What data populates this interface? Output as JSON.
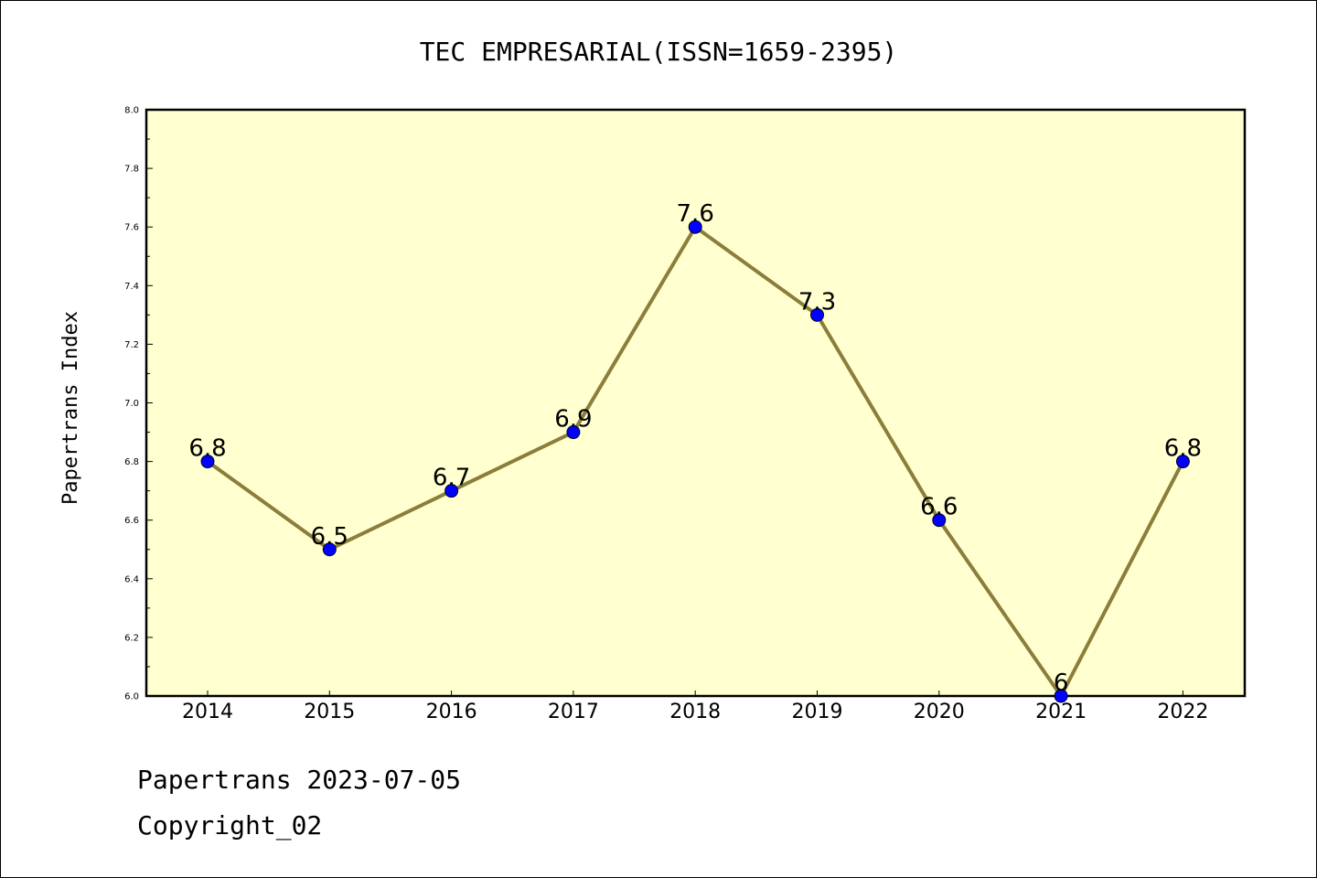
{
  "footer": {
    "line1": "Papertrans 2023-07-05",
    "line2": "Copyright_02"
  },
  "colors": {
    "plot_background": "#ffffd0",
    "line": "#8b7d3a",
    "marker": "#0000ff"
  },
  "chart_data": {
    "type": "line",
    "title": "TEC EMPRESARIAL(ISSN=1659-2395)",
    "xlabel": "",
    "ylabel": "Papertrans Index",
    "categories": [
      "2014",
      "2015",
      "2016",
      "2017",
      "2018",
      "2019",
      "2020",
      "2021",
      "2022"
    ],
    "values": [
      6.8,
      6.5,
      6.7,
      6.9,
      7.6,
      7.3,
      6.6,
      6.0,
      6.8
    ],
    "data_labels": [
      "6.8",
      "6.5",
      "6.7",
      "6.9",
      "7.6",
      "7.3",
      "6.6",
      "6",
      "6.8"
    ],
    "ylim": [
      6.0,
      8.0
    ],
    "yticks": [
      "6.0",
      "6.2",
      "6.4",
      "6.6",
      "6.8",
      "7.0",
      "7.2",
      "7.4",
      "7.6",
      "7.8",
      "8.0"
    ],
    "grid": false,
    "legend": "none"
  }
}
